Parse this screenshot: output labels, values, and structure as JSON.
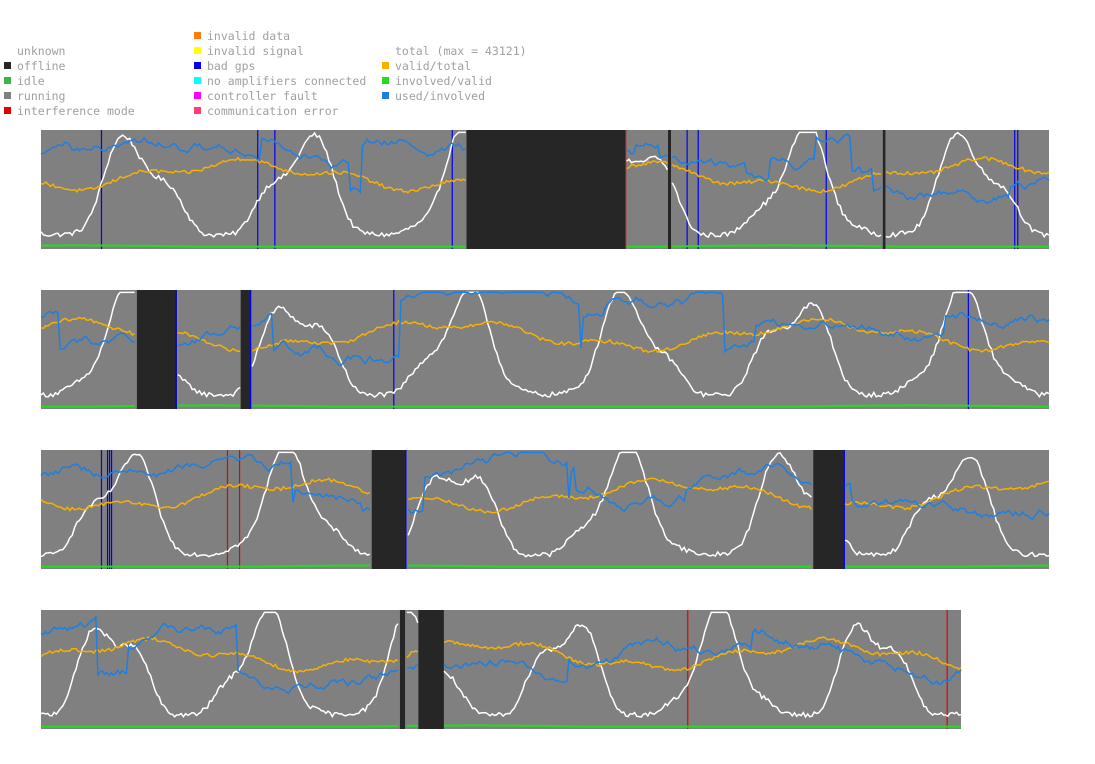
{
  "legend": {
    "status": [
      {
        "label": "unknown",
        "color": "#ffffff"
      },
      {
        "label": "offline",
        "color": "#262626"
      },
      {
        "label": "idle",
        "color": "#3cb44b"
      },
      {
        "label": "running",
        "color": "#808080"
      },
      {
        "label": "interference mode",
        "color": "#e60000"
      }
    ],
    "errors": [
      {
        "label": "invalid data",
        "color": "#ff7f0e"
      },
      {
        "label": "invalid signal",
        "color": "#ffff00"
      },
      {
        "label": "bad gps",
        "color": "#0000ee"
      },
      {
        "label": "no amplifiers connected",
        "color": "#00ffff"
      },
      {
        "label": "controller fault",
        "color": "#ff00ff"
      },
      {
        "label": "communication error",
        "color": "#ff3c78"
      }
    ],
    "metrics": [
      {
        "label": "total (max = 43121)",
        "color": "#ffffff"
      },
      {
        "label": "valid/total",
        "color": "#f5b000"
      },
      {
        "label": "involved/valid",
        "color": "#22dd22"
      },
      {
        "label": "used/involved",
        "color": "#1f7fe0"
      }
    ]
  },
  "chart_data": {
    "type": "line",
    "total_max": 43121,
    "panels": [
      {
        "status_segments": [
          {
            "from": 0.0,
            "to": 0.422,
            "status": "running"
          },
          {
            "from": 0.422,
            "to": 0.58,
            "status": "offline"
          },
          {
            "from": 0.58,
            "to": 0.622,
            "status": "running"
          },
          {
            "from": 0.622,
            "to": 0.625,
            "status": "offline"
          },
          {
            "from": 0.625,
            "to": 0.835,
            "status": "running"
          },
          {
            "from": 0.835,
            "to": 0.838,
            "status": "offline"
          },
          {
            "from": 0.838,
            "to": 1.0,
            "status": "running"
          }
        ],
        "markers": [
          {
            "at": 0.06,
            "kind": "bad gps"
          },
          {
            "at": 0.215,
            "kind": "bad gps"
          },
          {
            "at": 0.232,
            "kind": "bad gps"
          },
          {
            "at": 0.408,
            "kind": "bad gps"
          },
          {
            "at": 0.58,
            "kind": "interference mode"
          },
          {
            "at": 0.641,
            "kind": "bad gps"
          },
          {
            "at": 0.652,
            "kind": "bad gps"
          },
          {
            "at": 0.779,
            "kind": "bad gps"
          },
          {
            "at": 0.966,
            "kind": "bad gps"
          },
          {
            "at": 0.969,
            "kind": "bad gps"
          }
        ]
      },
      {
        "status_segments": [
          {
            "from": 0.0,
            "to": 0.095,
            "status": "running"
          },
          {
            "from": 0.095,
            "to": 0.135,
            "status": "offline"
          },
          {
            "from": 0.135,
            "to": 0.198,
            "status": "running"
          },
          {
            "from": 0.198,
            "to": 0.208,
            "status": "offline"
          },
          {
            "from": 0.208,
            "to": 1.0,
            "status": "running"
          }
        ],
        "markers": [
          {
            "at": 0.134,
            "kind": "bad gps"
          },
          {
            "at": 0.208,
            "kind": "bad gps"
          },
          {
            "at": 0.35,
            "kind": "bad gps"
          },
          {
            "at": 0.92,
            "kind": "bad gps"
          }
        ]
      },
      {
        "status_segments": [
          {
            "from": 0.0,
            "to": 0.328,
            "status": "running"
          },
          {
            "from": 0.328,
            "to": 0.362,
            "status": "offline"
          },
          {
            "from": 0.362,
            "to": 0.766,
            "status": "running"
          },
          {
            "from": 0.766,
            "to": 0.797,
            "status": "offline"
          },
          {
            "from": 0.797,
            "to": 1.0,
            "status": "running"
          }
        ],
        "markers": [
          {
            "at": 0.06,
            "kind": "bad gps"
          },
          {
            "at": 0.066,
            "kind": "bad gps"
          },
          {
            "at": 0.068,
            "kind": "bad gps"
          },
          {
            "at": 0.07,
            "kind": "bad gps"
          },
          {
            "at": 0.185,
            "kind": "interference mode"
          },
          {
            "at": 0.197,
            "kind": "interference mode"
          },
          {
            "at": 0.362,
            "kind": "bad gps"
          },
          {
            "at": 0.797,
            "kind": "bad gps"
          }
        ]
      },
      {
        "status_segments": [
          {
            "from": 0.0,
            "to": 0.39,
            "status": "running"
          },
          {
            "from": 0.39,
            "to": 0.396,
            "status": "offline"
          },
          {
            "from": 0.396,
            "to": 0.41,
            "status": "running"
          },
          {
            "from": 0.41,
            "to": 0.438,
            "status": "offline"
          },
          {
            "from": 0.438,
            "to": 1.0,
            "status": "running"
          }
        ],
        "markers": [
          {
            "at": 0.703,
            "kind": "interference mode"
          },
          {
            "at": 0.985,
            "kind": "interference mode"
          }
        ]
      }
    ]
  }
}
